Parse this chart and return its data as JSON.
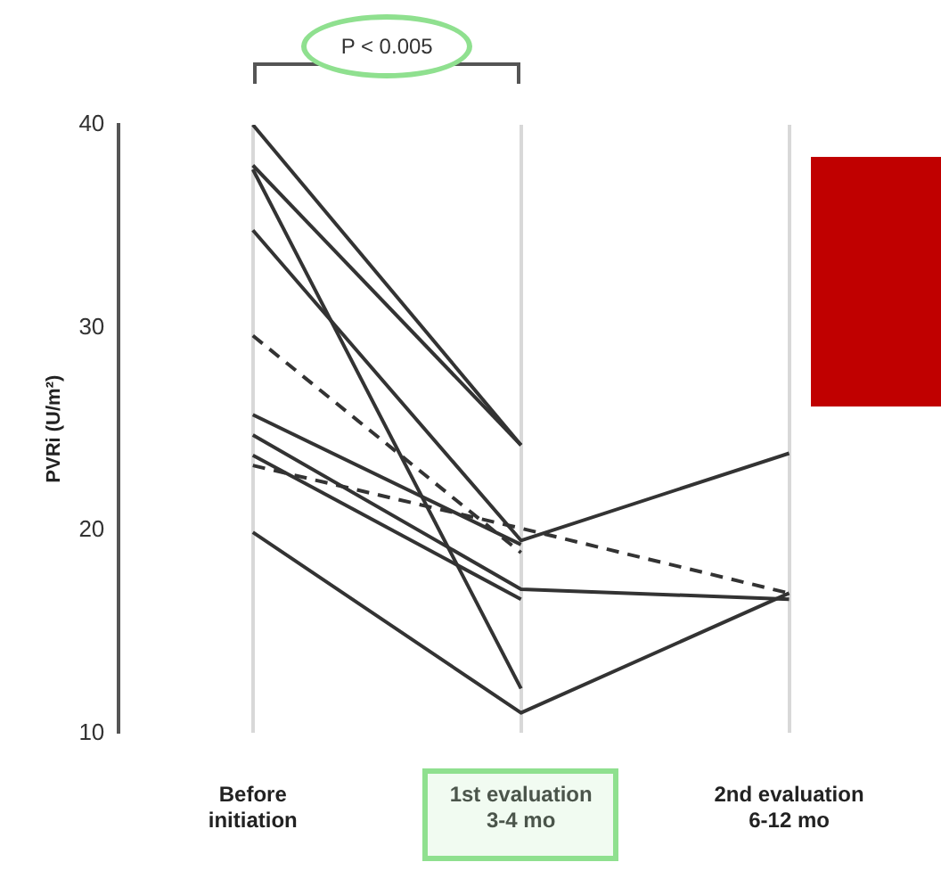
{
  "chart_data": {
    "type": "line",
    "ylabel": "PVRi (U/m²)",
    "categories": [
      "Before\ninitiation",
      "1st evaluation\n3-4 mo",
      "2nd evaluation\n6-12 mo"
    ],
    "series": [
      {
        "color": "#333333",
        "values": [
          40,
          24.2,
          null
        ]
      },
      {
        "color": "#333333",
        "values": [
          38,
          24.2,
          null
        ]
      },
      {
        "color": "#333333",
        "values": [
          37.8,
          12.2,
          null
        ]
      },
      {
        "color": "#333333",
        "values": [
          34.8,
          19.5,
          23.8
        ]
      },
      {
        "color": "#333333",
        "line_style": "dashed",
        "values": [
          29.6,
          18.9,
          null
        ]
      },
      {
        "color": "#333333",
        "values": [
          25.7,
          19.3,
          null
        ]
      },
      {
        "color": "#333333",
        "values": [
          24.7,
          17.1,
          16.6
        ]
      },
      {
        "color": "#333333",
        "values": [
          23.7,
          16.6,
          null
        ]
      },
      {
        "color": "#333333",
        "line_style": "dashed",
        "values": [
          23.2,
          20.1,
          16.9
        ]
      },
      {
        "color": "#333333",
        "values": [
          19.9,
          11,
          16.9
        ]
      }
    ],
    "ylim": [
      10,
      40
    ],
    "yticks": [
      10,
      20,
      30,
      40
    ],
    "grid": "x",
    "legend": false,
    "marker": "none",
    "line_style": "solid",
    "annotations": [
      "P < 0.005"
    ]
  }
}
